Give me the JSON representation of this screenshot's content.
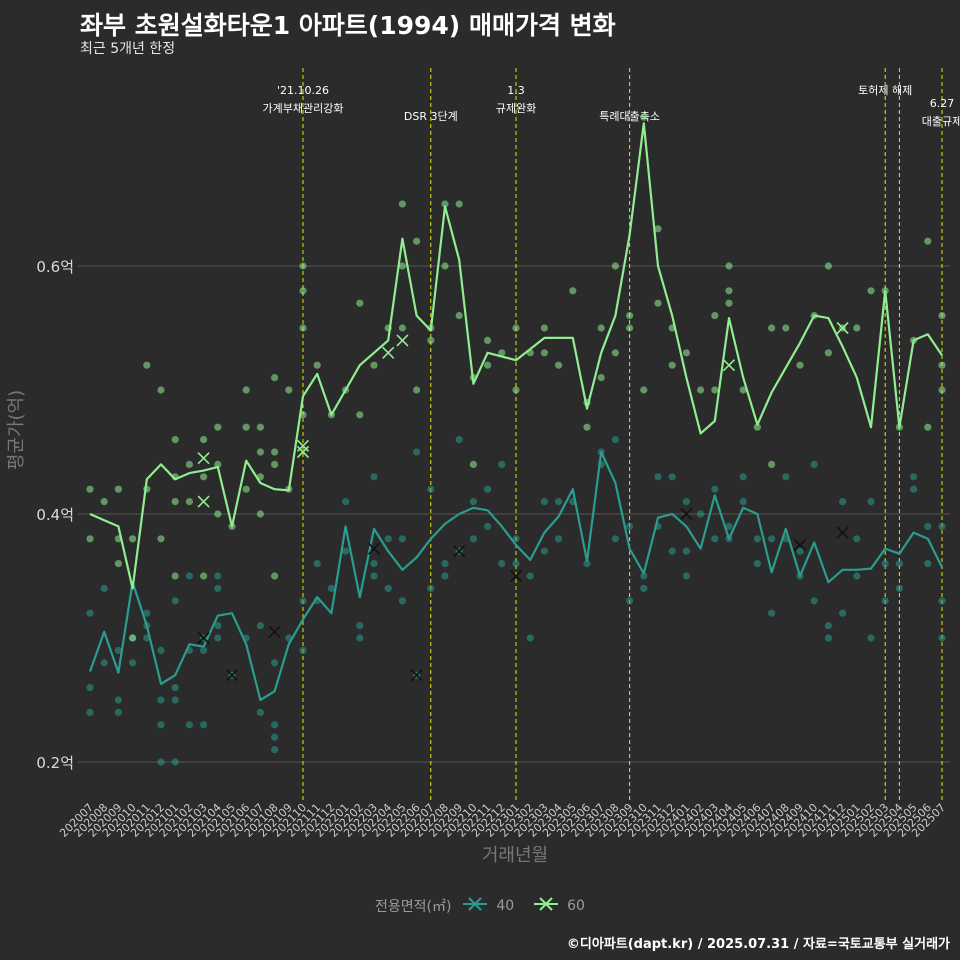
{
  "title": "좌부 초원설화타운1 아파트(1994) 매매가격 변화",
  "subtitle": "최근 5개년 한정",
  "caption": "©디아파트(dapt.kr) / 2025.07.31 / 자료=국토교통부 실거래가",
  "legend": {
    "title": "전용면적(㎡)",
    "items": [
      "40",
      "60"
    ]
  },
  "colors": {
    "background": "#2b2b2b",
    "grid": "#555555",
    "series_40": "#2a9d8f",
    "series_60": "#90ee90",
    "event_line": "#e6e600"
  },
  "chart_data": {
    "type": "line",
    "title": "좌부 초원설화타운1 아파트(1994) 매매가격 변화",
    "subtitle": "최근 5개년 한정",
    "xlabel": "거래년월",
    "ylabel": "평균가(억)",
    "ylim": [
      0.18,
      0.72
    ],
    "yticks": [
      0.2,
      0.4,
      0.6
    ],
    "ytick_labels": [
      "0.2억",
      "0.4억",
      "0.6억"
    ],
    "grid": true,
    "legend_position": "bottom",
    "x": [
      "202007",
      "202008",
      "202009",
      "202010",
      "202011",
      "202012",
      "202101",
      "202102",
      "202103",
      "202104",
      "202105",
      "202106",
      "202107",
      "202108",
      "202109",
      "202110",
      "202111",
      "202112",
      "202201",
      "202202",
      "202203",
      "202204",
      "202205",
      "202206",
      "202207",
      "202208",
      "202209",
      "202210",
      "202211",
      "202212",
      "202301",
      "202302",
      "202303",
      "202304",
      "202305",
      "202306",
      "202307",
      "202308",
      "202309",
      "202310",
      "202311",
      "202312",
      "202401",
      "202402",
      "202403",
      "202404",
      "202405",
      "202406",
      "202407",
      "202408",
      "202409",
      "202410",
      "202411",
      "202412",
      "202501",
      "202502",
      "202503",
      "202504",
      "202505",
      "202506",
      "202507"
    ],
    "series": [
      {
        "name": "40",
        "values": [
          0.273,
          0.305,
          0.272,
          0.345,
          0.31,
          0.263,
          0.27,
          0.295,
          0.293,
          0.318,
          0.32,
          0.295,
          0.25,
          0.257,
          0.295,
          0.315,
          0.333,
          0.32,
          0.39,
          0.333,
          0.388,
          0.37,
          0.355,
          0.365,
          0.38,
          0.392,
          0.4,
          0.405,
          0.403,
          0.39,
          0.375,
          0.363,
          0.385,
          0.398,
          0.42,
          0.362,
          0.45,
          0.425,
          0.372,
          0.352,
          0.397,
          0.4,
          0.39,
          0.372,
          0.415,
          0.38,
          0.405,
          0.4,
          0.353,
          0.388,
          0.35,
          0.377,
          0.345,
          0.355,
          0.355,
          0.356,
          0.372,
          0.368,
          0.385,
          0.38,
          0.357
        ]
      },
      {
        "name": "60",
        "values": [
          0.4,
          0.395,
          0.39,
          0.34,
          0.428,
          0.44,
          0.428,
          0.433,
          0.435,
          0.438,
          0.39,
          0.443,
          0.425,
          0.42,
          0.419,
          0.495,
          0.513,
          0.48,
          0.5,
          0.52,
          0.53,
          0.54,
          0.622,
          0.56,
          0.548,
          0.648,
          0.605,
          0.505,
          0.53,
          0.527,
          0.524,
          0.533,
          0.542,
          0.542,
          0.542,
          0.485,
          0.53,
          0.56,
          0.625,
          0.715,
          0.6,
          0.56,
          0.51,
          0.465,
          0.475,
          0.558,
          0.51,
          0.472,
          0.498,
          0.518,
          0.538,
          0.56,
          0.558,
          0.535,
          0.51,
          0.47,
          0.58,
          0.47,
          0.54,
          0.545,
          0.528
        ]
      }
    ],
    "points_40": [
      [
        0,
        0.32
      ],
      [
        0,
        0.26
      ],
      [
        0,
        0.24
      ],
      [
        1,
        0.28
      ],
      [
        1,
        0.34
      ],
      [
        2,
        0.25
      ],
      [
        2,
        0.24
      ],
      [
        2,
        0.29
      ],
      [
        3,
        0.3
      ],
      [
        3,
        0.28
      ],
      [
        4,
        0.32
      ],
      [
        4,
        0.3
      ],
      [
        4,
        0.31
      ],
      [
        5,
        0.29
      ],
      [
        5,
        0.25
      ],
      [
        5,
        0.23
      ],
      [
        5,
        0.2
      ],
      [
        6,
        0.26
      ],
      [
        6,
        0.2
      ],
      [
        6,
        0.25
      ],
      [
        6,
        0.33
      ],
      [
        7,
        0.23
      ],
      [
        7,
        0.35
      ],
      [
        7,
        0.29
      ],
      [
        8,
        0.3
      ],
      [
        8,
        0.29
      ],
      [
        8,
        0.23
      ],
      [
        9,
        0.35
      ],
      [
        9,
        0.34
      ],
      [
        9,
        0.3
      ],
      [
        9,
        0.31
      ],
      [
        10,
        0.27
      ],
      [
        11,
        0.3
      ],
      [
        12,
        0.24
      ],
      [
        12,
        0.31
      ],
      [
        13,
        0.28
      ],
      [
        13,
        0.23
      ],
      [
        13,
        0.22
      ],
      [
        13,
        0.21
      ],
      [
        14,
        0.3
      ],
      [
        15,
        0.33
      ],
      [
        15,
        0.29
      ],
      [
        16,
        0.33
      ],
      [
        16,
        0.36
      ],
      [
        17,
        0.34
      ],
      [
        18,
        0.37
      ],
      [
        18,
        0.41
      ],
      [
        19,
        0.3
      ],
      [
        19,
        0.31
      ],
      [
        20,
        0.35
      ],
      [
        20,
        0.36
      ],
      [
        20,
        0.43
      ],
      [
        21,
        0.38
      ],
      [
        21,
        0.34
      ],
      [
        22,
        0.33
      ],
      [
        22,
        0.38
      ],
      [
        23,
        0.27
      ],
      [
        23,
        0.45
      ],
      [
        24,
        0.42
      ],
      [
        24,
        0.34
      ],
      [
        25,
        0.36
      ],
      [
        25,
        0.35
      ],
      [
        26,
        0.46
      ],
      [
        26,
        0.37
      ],
      [
        27,
        0.41
      ],
      [
        27,
        0.38
      ],
      [
        28,
        0.42
      ],
      [
        28,
        0.39
      ],
      [
        29,
        0.44
      ],
      [
        29,
        0.36
      ],
      [
        30,
        0.38
      ],
      [
        30,
        0.36
      ],
      [
        31,
        0.3
      ],
      [
        31,
        0.35
      ],
      [
        32,
        0.41
      ],
      [
        32,
        0.37
      ],
      [
        33,
        0.41
      ],
      [
        33,
        0.38
      ],
      [
        34,
        0.41
      ],
      [
        35,
        0.36
      ],
      [
        36,
        0.45
      ],
      [
        36,
        0.44
      ],
      [
        37,
        0.46
      ],
      [
        37,
        0.38
      ],
      [
        38,
        0.33
      ],
      [
        38,
        0.39
      ],
      [
        39,
        0.34
      ],
      [
        39,
        0.35
      ],
      [
        40,
        0.43
      ],
      [
        40,
        0.39
      ],
      [
        41,
        0.43
      ],
      [
        41,
        0.37
      ],
      [
        42,
        0.41
      ],
      [
        42,
        0.37
      ],
      [
        42,
        0.35
      ],
      [
        43,
        0.4
      ],
      [
        44,
        0.42
      ],
      [
        44,
        0.38
      ],
      [
        45,
        0.39
      ],
      [
        45,
        0.38
      ],
      [
        46,
        0.43
      ],
      [
        46,
        0.41
      ],
      [
        47,
        0.38
      ],
      [
        47,
        0.36
      ],
      [
        48,
        0.32
      ],
      [
        48,
        0.38
      ],
      [
        49,
        0.43
      ],
      [
        49,
        0.38
      ],
      [
        50,
        0.37
      ],
      [
        50,
        0.35
      ],
      [
        51,
        0.44
      ],
      [
        51,
        0.33
      ],
      [
        52,
        0.31
      ],
      [
        52,
        0.3
      ],
      [
        53,
        0.32
      ],
      [
        53,
        0.41
      ],
      [
        54,
        0.38
      ],
      [
        54,
        0.35
      ],
      [
        55,
        0.3
      ],
      [
        55,
        0.41
      ],
      [
        56,
        0.33
      ],
      [
        56,
        0.36
      ],
      [
        57,
        0.36
      ],
      [
        57,
        0.34
      ],
      [
        58,
        0.42
      ],
      [
        58,
        0.43
      ],
      [
        59,
        0.39
      ],
      [
        59,
        0.36
      ],
      [
        60,
        0.33
      ],
      [
        60,
        0.3
      ],
      [
        60,
        0.39
      ]
    ],
    "points_60": [
      [
        0,
        0.42
      ],
      [
        0,
        0.38
      ],
      [
        1,
        0.41
      ],
      [
        2,
        0.42
      ],
      [
        2,
        0.38
      ],
      [
        2,
        0.36
      ],
      [
        3,
        0.3
      ],
      [
        3,
        0.38
      ],
      [
        4,
        0.52
      ],
      [
        4,
        0.42
      ],
      [
        5,
        0.5
      ],
      [
        5,
        0.38
      ],
      [
        6,
        0.46
      ],
      [
        6,
        0.43
      ],
      [
        6,
        0.41
      ],
      [
        6,
        0.35
      ],
      [
        7,
        0.44
      ],
      [
        7,
        0.41
      ],
      [
        8,
        0.46
      ],
      [
        8,
        0.43
      ],
      [
        8,
        0.35
      ],
      [
        9,
        0.47
      ],
      [
        9,
        0.44
      ],
      [
        9,
        0.4
      ],
      [
        10,
        0.39
      ],
      [
        11,
        0.47
      ],
      [
        11,
        0.5
      ],
      [
        11,
        0.42
      ],
      [
        12,
        0.47
      ],
      [
        12,
        0.45
      ],
      [
        12,
        0.43
      ],
      [
        12,
        0.4
      ],
      [
        13,
        0.51
      ],
      [
        13,
        0.45
      ],
      [
        13,
        0.44
      ],
      [
        13,
        0.35
      ],
      [
        14,
        0.5
      ],
      [
        14,
        0.42
      ],
      [
        15,
        0.6
      ],
      [
        15,
        0.58
      ],
      [
        15,
        0.55
      ],
      [
        15,
        0.48
      ],
      [
        16,
        0.52
      ],
      [
        17,
        0.48
      ],
      [
        18,
        0.5
      ],
      [
        19,
        0.57
      ],
      [
        19,
        0.48
      ],
      [
        20,
        0.52
      ],
      [
        21,
        0.55
      ],
      [
        22,
        0.65
      ],
      [
        22,
        0.6
      ],
      [
        22,
        0.55
      ],
      [
        23,
        0.62
      ],
      [
        23,
        0.5
      ],
      [
        24,
        0.54
      ],
      [
        24,
        0.55
      ],
      [
        25,
        0.6
      ],
      [
        25,
        0.65
      ],
      [
        26,
        0.65
      ],
      [
        26,
        0.56
      ],
      [
        27,
        0.51
      ],
      [
        27,
        0.44
      ],
      [
        28,
        0.54
      ],
      [
        28,
        0.52
      ],
      [
        29,
        0.53
      ],
      [
        30,
        0.55
      ],
      [
        30,
        0.5
      ],
      [
        31,
        0.53
      ],
      [
        32,
        0.55
      ],
      [
        32,
        0.53
      ],
      [
        33,
        0.52
      ],
      [
        34,
        0.58
      ],
      [
        35,
        0.49
      ],
      [
        35,
        0.47
      ],
      [
        36,
        0.55
      ],
      [
        36,
        0.51
      ],
      [
        37,
        0.6
      ],
      [
        37,
        0.53
      ],
      [
        38,
        0.56
      ],
      [
        38,
        0.55
      ],
      [
        39,
        0.72
      ],
      [
        39,
        0.5
      ],
      [
        40,
        0.63
      ],
      [
        40,
        0.57
      ],
      [
        41,
        0.55
      ],
      [
        41,
        0.52
      ],
      [
        42,
        0.53
      ],
      [
        43,
        0.5
      ],
      [
        44,
        0.5
      ],
      [
        44,
        0.56
      ],
      [
        45,
        0.6
      ],
      [
        45,
        0.57
      ],
      [
        45,
        0.58
      ],
      [
        46,
        0.5
      ],
      [
        47,
        0.47
      ],
      [
        48,
        0.55
      ],
      [
        48,
        0.44
      ],
      [
        49,
        0.55
      ],
      [
        50,
        0.52
      ],
      [
        51,
        0.56
      ],
      [
        52,
        0.6
      ],
      [
        52,
        0.53
      ],
      [
        53,
        0.55
      ],
      [
        54,
        0.55
      ],
      [
        55,
        0.58
      ],
      [
        56,
        0.58
      ],
      [
        57,
        0.47
      ],
      [
        58,
        0.54
      ],
      [
        59,
        0.62
      ],
      [
        59,
        0.47
      ],
      [
        60,
        0.56
      ],
      [
        60,
        0.52
      ],
      [
        60,
        0.5
      ]
    ],
    "cross_40": [
      [
        8,
        0.3
      ],
      [
        10,
        0.27
      ],
      [
        13,
        0.305
      ],
      [
        23,
        0.27
      ],
      [
        20,
        0.372
      ],
      [
        26,
        0.37
      ],
      [
        30,
        0.35
      ],
      [
        42,
        0.4
      ],
      [
        50,
        0.375
      ],
      [
        53,
        0.385
      ]
    ],
    "cross_60": [
      [
        8,
        0.445
      ],
      [
        8,
        0.41
      ],
      [
        15,
        0.455
      ],
      [
        15,
        0.45
      ],
      [
        21,
        0.53
      ],
      [
        22,
        0.54
      ],
      [
        45,
        0.52
      ],
      [
        53,
        0.55
      ]
    ],
    "events": [
      {
        "index": 15,
        "label": "'21.10.26\n가계부채관리강화",
        "row": 0
      },
      {
        "index": 24,
        "label": "DSR 3단계",
        "row": 1
      },
      {
        "index": 30,
        "label": "1.3\n규제완화",
        "row": 0
      },
      {
        "index": 38,
        "label": "특례대출축소",
        "row": 1
      },
      {
        "index": 56,
        "label": "토허제 해제",
        "row": 0
      },
      {
        "index": 57,
        "label": "",
        "row": 0
      },
      {
        "index": 60,
        "label": "6.27\n대출규제",
        "row": 0.5
      }
    ]
  }
}
